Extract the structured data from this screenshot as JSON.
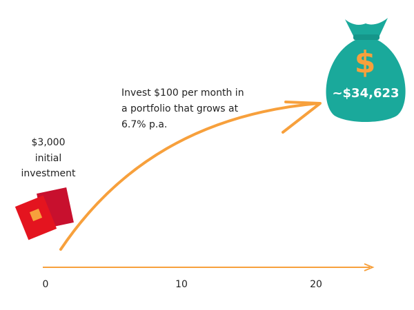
{
  "initial": {
    "lines": [
      "$3,000",
      "initial",
      "investment"
    ]
  },
  "note": {
    "lines": [
      "Invest $100 per month in",
      "a portfolio that grows at",
      "6.7% p.a."
    ]
  },
  "bag": {
    "symbol": "$",
    "amount": "~$34,623"
  },
  "axis": {
    "labels": [
      "0",
      "10",
      "20"
    ]
  }
}
